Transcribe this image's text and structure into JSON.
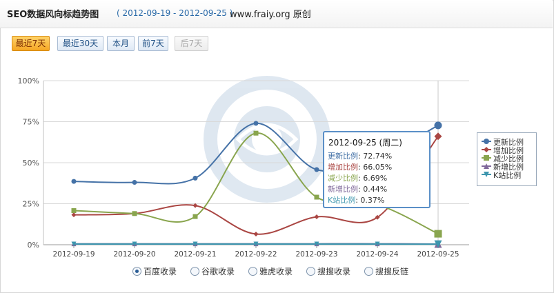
{
  "header": {
    "title": "SEO数据风向标趋势图",
    "range": "( 2012-09-19 - 2012-09-25 )",
    "site": "www.fraiy.org 原创"
  },
  "buttons": [
    {
      "label": "最近7天",
      "state": "active"
    },
    {
      "label": "最近30天",
      "state": "normal"
    },
    {
      "label": "本月",
      "state": "normal"
    },
    {
      "label": "前7天",
      "state": "normal"
    },
    {
      "label": "后7天",
      "state": "disabled"
    }
  ],
  "chart_data": {
    "type": "line",
    "categories": [
      "2012-09-19",
      "2012-09-20",
      "2012-09-21",
      "2012-09-22",
      "2012-09-23",
      "2012-09-24",
      "2012-09-25"
    ],
    "ylim": [
      0,
      100
    ],
    "y_ticks": [
      "0%",
      "25%",
      "50%",
      "75%",
      "100%"
    ],
    "grid": true,
    "legend_position": "right",
    "series": [
      {
        "name": "更新比例",
        "color": "#4572a7",
        "marker": "circle",
        "values": [
          38.6,
          38.0,
          40.6,
          74.0,
          45.8,
          53.0,
          72.74
        ]
      },
      {
        "name": "增加比例",
        "color": "#aa4643",
        "marker": "diamond",
        "values": [
          18.2,
          19.0,
          23.9,
          6.5,
          17.0,
          16.7,
          66.05
        ]
      },
      {
        "name": "减少比例",
        "color": "#89a54e",
        "marker": "square",
        "values": [
          20.8,
          19.0,
          17.2,
          68.0,
          29.0,
          24.5,
          6.69
        ]
      },
      {
        "name": "新增比例",
        "color": "#80699b",
        "marker": "triangle",
        "values": [
          0.6,
          0.6,
          0.6,
          0.6,
          0.6,
          0.6,
          0.44
        ]
      },
      {
        "name": "K站比例",
        "color": "#3d96ae",
        "marker": "triangle-down",
        "values": [
          0.4,
          0.4,
          0.4,
          0.4,
          0.4,
          0.4,
          0.37
        ]
      }
    ]
  },
  "tooltip": {
    "date": "2012-09-25 (周二)",
    "rows": [
      {
        "label": "更新比例",
        "value": ": 72.74%",
        "color": "#4572a7"
      },
      {
        "label": "增加比例",
        "value": ": 66.05%",
        "color": "#aa4643"
      },
      {
        "label": "减少比例",
        "value": ": 6.69%",
        "color": "#89a54e"
      },
      {
        "label": "新增比例",
        "value": ": 0.44%",
        "color": "#80699b"
      },
      {
        "label": "K站比例",
        "value": ": 0.37%",
        "color": "#3d96ae"
      }
    ]
  },
  "radio_options": [
    {
      "label": "百度收录",
      "checked": true
    },
    {
      "label": "谷歌收录",
      "checked": false
    },
    {
      "label": "雅虎收录",
      "checked": false
    },
    {
      "label": "搜搜收录",
      "checked": false
    },
    {
      "label": "搜搜反链",
      "checked": false
    }
  ]
}
